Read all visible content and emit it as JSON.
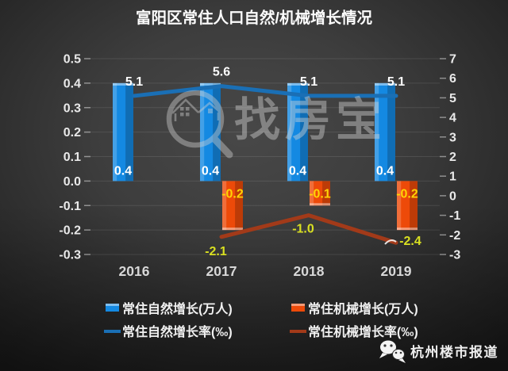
{
  "title": "富阳区常住人口自然/机械增长情况",
  "watermark": {
    "brand": "找房宝",
    "logo": "magnifier-houses-icon"
  },
  "footer": {
    "channel": "杭州楼市报道",
    "icon": "wechat-icon"
  },
  "colors": {
    "natural_bar": "#1489e2",
    "mechanical_bar": "#ed4a09",
    "natural_rate_line": "#1a6fb5",
    "mechanical_rate_line": "#a23a19",
    "bar_label_white": "#ffffff",
    "bar_label_yellow": "#ffd405",
    "rate_label_yellowgreen": "#d9e021"
  },
  "chart_data": {
    "type": "combo-bar-line",
    "title": "富阳区常住人口自然/机械增长情况",
    "categories": [
      "2016",
      "2017",
      "2018",
      "2019"
    ],
    "series": [
      {
        "name": "常住自然增长(万人)",
        "kind": "bar",
        "axis": "left",
        "color": "#1489e2",
        "values": [
          0.4,
          0.4,
          0.4,
          0.4
        ],
        "labels": [
          "0.4",
          "0.4",
          "0.4",
          "0.4"
        ],
        "label_color": "#ffffff"
      },
      {
        "name": "常住机械增长(万人)",
        "kind": "bar",
        "axis": "left",
        "color": "#ed4a09",
        "values": [
          null,
          -0.2,
          -0.1,
          -0.2
        ],
        "labels": [
          "",
          "-0.2",
          "-0.1",
          "-0.2"
        ],
        "label_color": "#ffd405"
      },
      {
        "name": "常住自然增长率(‰)",
        "kind": "line",
        "axis": "right",
        "color": "#1a6fb5",
        "values": [
          5.1,
          5.6,
          5.1,
          5.1
        ],
        "labels": [
          "5.1",
          "5.6",
          "5.1",
          "5.1"
        ],
        "label_color": "#ffffff"
      },
      {
        "name": "常住机械增长率(‰)",
        "kind": "line",
        "axis": "right",
        "color": "#a23a19",
        "values": [
          null,
          -2.1,
          -1.0,
          -2.4
        ],
        "labels": [
          "",
          "-2.1",
          "-1.0",
          "-2.4"
        ],
        "label_color": "#d9e021"
      }
    ],
    "left_axis": {
      "min": -0.3,
      "max": 0.5,
      "ticks": [
        "0.5",
        "0.4",
        "0.3",
        "0.2",
        "0.1",
        "0.0",
        "-0.1",
        "-0.2",
        "-0.3"
      ]
    },
    "right_axis": {
      "min": -3,
      "max": 7,
      "ticks": [
        "7",
        "6",
        "5",
        "4",
        "3",
        "2",
        "1",
        "0",
        "-1",
        "-2",
        "-3"
      ]
    },
    "grid": true,
    "legend_position": "bottom"
  }
}
